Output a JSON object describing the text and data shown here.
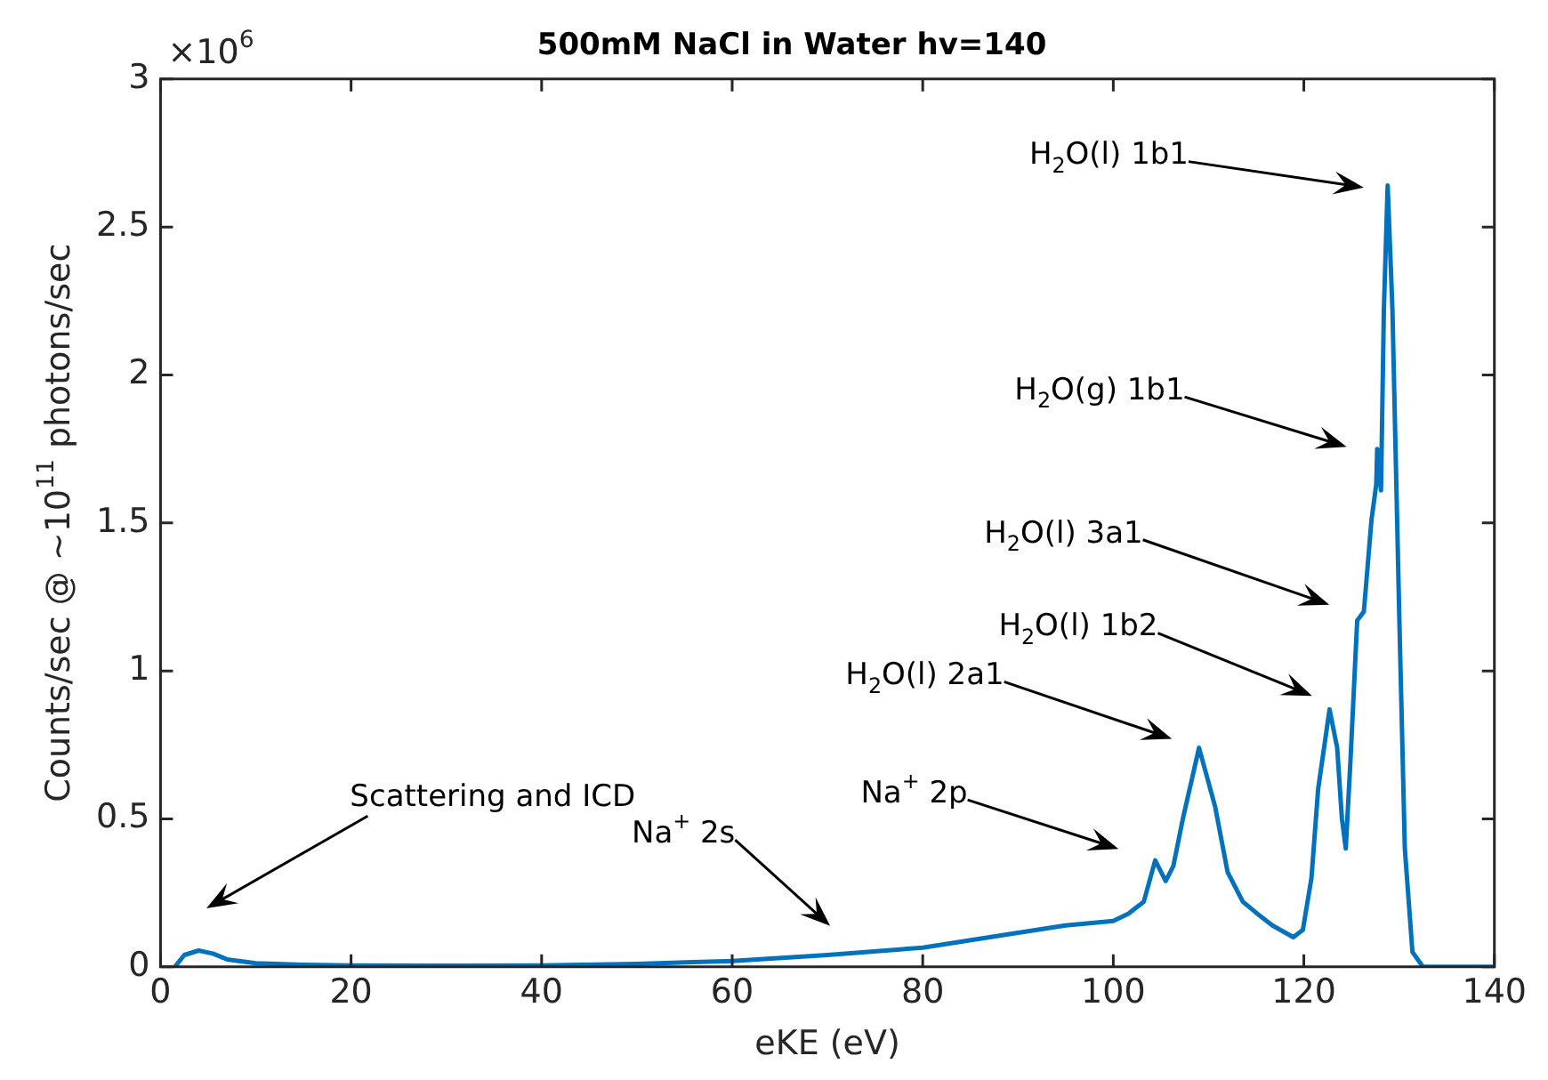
{
  "chart_data": {
    "type": "line",
    "title": "500mM NaCl in Water hv=140",
    "xlabel": "eKE (eV)",
    "ylabel": "Counts/sec @ ~10$^{11}$ photons/sec",
    "xlim": [
      0,
      140
    ],
    "xticks": [
      0,
      20,
      40,
      60,
      80,
      100,
      120,
      140
    ],
    "ylim": [
      0,
      3
    ],
    "yticks": [
      0,
      0.5,
      1,
      1.5,
      2,
      2.5,
      3
    ],
    "marker": "none",
    "series": [
      {
        "color": "#0072bd",
        "x": [
          1.5,
          2.5,
          4,
          5.5,
          7,
          10,
          15,
          20,
          30,
          40,
          50,
          60,
          70,
          80,
          90,
          95,
          100,
          101.6,
          103.2,
          104.4,
          105.5,
          106.3,
          107.3,
          109,
          110.7,
          112,
          113.6,
          115.1,
          116.7,
          118.9,
          119.9,
          120.8,
          121.5,
          122.7,
          123.5,
          124,
          124.4,
          124.9,
          125.6,
          126.3,
          127.1,
          127.6,
          127.7,
          128.1,
          128.4,
          128.8,
          129.3,
          130,
          130.6,
          131.4,
          132.5,
          140
        ],
        "values": [
          0,
          0.04,
          0.055,
          0.045,
          0.025,
          0.012,
          0.007,
          0.005,
          0.004,
          0.005,
          0.01,
          0.02,
          0.04,
          0.065,
          0.115,
          0.14,
          0.155,
          0.18,
          0.22,
          0.36,
          0.29,
          0.34,
          0.5,
          0.74,
          0.54,
          0.32,
          0.22,
          0.18,
          0.14,
          0.1,
          0.125,
          0.3,
          0.6,
          0.87,
          0.74,
          0.5,
          0.4,
          0.7,
          1.17,
          1.2,
          1.51,
          1.63,
          1.75,
          1.61,
          2.22,
          2.64,
          2.22,
          1.21,
          0.4,
          0.05,
          0,
          0
        ]
      }
    ],
    "annotations": [
      "×10$^{6}$",
      "H$_{2}$O(l) 1b1",
      "H$_{2}$O(g) 1b1",
      "H$_{2}$O(l) 3a1",
      "H$_{2}$O(l) 1b2",
      "H$_{2}$O(l) 2a1",
      "Na$^{+}$ 2p",
      "Na$^{+}$ 2s",
      "Scattering and ICD"
    ]
  }
}
